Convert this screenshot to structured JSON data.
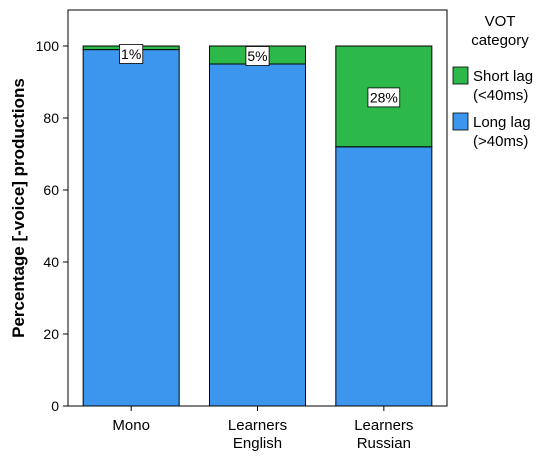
{
  "chart_data": {
    "type": "bar",
    "stacked": true,
    "percent": true,
    "categories": [
      "Mono",
      "Learners\nEnglish",
      "Learners\nRussian"
    ],
    "series": [
      {
        "name": "Long lag\n(>40ms)",
        "values": [
          99,
          95,
          72
        ],
        "color": "#3d96ee"
      },
      {
        "name": "Short lag\n(<40ms)",
        "values": [
          1,
          5,
          28
        ],
        "color": "#2db84a"
      }
    ],
    "data_labels": [
      "1%",
      "5%",
      "28%"
    ],
    "ylabel": "Percentage [-voice] productions",
    "ylim": [
      0,
      110
    ],
    "yticks": [
      0,
      20,
      40,
      60,
      80,
      100
    ],
    "legend": {
      "title": "VOT\ncategory",
      "position": "right",
      "order": [
        1,
        0
      ]
    },
    "background": "#ffffff",
    "frame_color": "#000000"
  }
}
